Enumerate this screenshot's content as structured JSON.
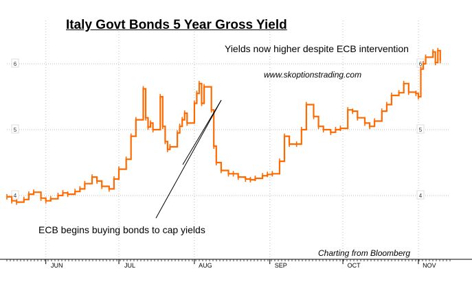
{
  "chart_data": {
    "type": "line",
    "title": "Italy Govt Bonds 5 Year Gross Yield",
    "xlabel": "",
    "ylabel": "",
    "ylim": [
      3.2,
      6.5
    ],
    "grid": true,
    "colors": {
      "series": "#ff6a00",
      "axis": "#000000",
      "grid": "#bbbbbb",
      "label_box": "#dddddd"
    },
    "x_ticks": [
      "JUN",
      "JUL",
      "AUG",
      "SEP",
      "OCT",
      "NOV"
    ],
    "y_ticks": [
      4,
      5,
      6
    ],
    "series": [
      {
        "x": [
          "2011-05-16",
          "2011-05-18",
          "2011-05-20",
          "2011-05-23",
          "2011-05-25",
          "2011-05-27",
          "2011-05-30",
          "2011-06-01",
          "2011-06-03",
          "2011-06-06",
          "2011-06-08",
          "2011-06-10",
          "2011-06-13",
          "2011-06-15",
          "2011-06-17",
          "2011-06-20",
          "2011-06-22",
          "2011-06-24",
          "2011-06-27",
          "2011-06-29",
          "2011-07-01",
          "2011-07-04",
          "2011-07-06",
          "2011-07-08",
          "2011-07-11",
          "2011-07-12",
          "2011-07-13",
          "2011-07-14",
          "2011-07-15",
          "2011-07-18",
          "2011-07-19",
          "2011-07-20",
          "2011-07-21",
          "2011-07-22",
          "2011-07-25",
          "2011-07-26",
          "2011-07-27",
          "2011-07-28",
          "2011-07-29",
          "2011-08-01",
          "2011-08-02",
          "2011-08-03",
          "2011-08-04",
          "2011-08-05",
          "2011-08-08",
          "2011-08-09",
          "2011-08-10",
          "2011-08-12",
          "2011-08-15",
          "2011-08-17",
          "2011-08-19",
          "2011-08-22",
          "2011-08-24",
          "2011-08-26",
          "2011-08-29",
          "2011-08-31",
          "2011-09-02",
          "2011-09-05",
          "2011-09-07",
          "2011-09-09",
          "2011-09-12",
          "2011-09-14",
          "2011-09-16",
          "2011-09-19",
          "2011-09-21",
          "2011-09-23",
          "2011-09-26",
          "2011-09-28",
          "2011-09-30",
          "2011-10-03",
          "2011-10-05",
          "2011-10-07",
          "2011-10-10",
          "2011-10-12",
          "2011-10-14",
          "2011-10-17",
          "2011-10-19",
          "2011-10-21",
          "2011-10-24",
          "2011-10-26",
          "2011-10-28",
          "2011-10-31",
          "2011-11-01",
          "2011-11-02",
          "2011-11-03",
          "2011-11-04",
          "2011-11-07",
          "2011-11-08",
          "2011-11-09",
          "2011-11-10"
        ],
        "values": [
          3.98,
          3.92,
          3.9,
          3.94,
          4.02,
          4.05,
          3.96,
          3.92,
          3.95,
          4.0,
          4.04,
          4.02,
          4.06,
          4.1,
          4.18,
          4.28,
          4.22,
          4.14,
          4.1,
          4.25,
          4.4,
          4.55,
          4.9,
          5.15,
          5.62,
          5.18,
          5.04,
          5.1,
          5.0,
          5.5,
          5.05,
          4.82,
          4.7,
          4.74,
          4.95,
          5.05,
          5.15,
          5.25,
          5.1,
          5.4,
          5.55,
          5.7,
          5.4,
          5.65,
          5.3,
          4.75,
          4.5,
          4.38,
          4.33,
          4.33,
          4.28,
          4.25,
          4.24,
          4.26,
          4.3,
          4.32,
          4.33,
          4.52,
          4.9,
          4.78,
          4.78,
          5.0,
          5.38,
          5.2,
          5.05,
          5.0,
          4.96,
          5.0,
          5.02,
          5.3,
          5.28,
          5.18,
          5.1,
          5.05,
          5.13,
          5.28,
          5.38,
          5.52,
          5.56,
          5.7,
          5.57,
          5.55,
          5.5,
          5.92,
          6.0,
          6.1,
          6.18,
          6.02,
          6.2,
          6.05
        ]
      }
    ]
  },
  "annotations": {
    "intervention": "Yields now higher despite ECB intervention",
    "website": "www.skoptionstrading.com",
    "ecb_buying": "ECB begins buying bonds to cap yields",
    "credit": "Charting from Bloomberg"
  }
}
